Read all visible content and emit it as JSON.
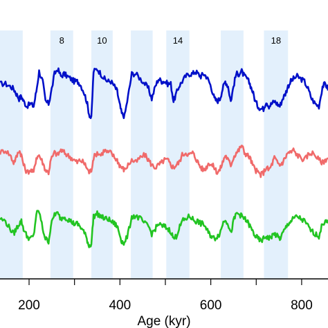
{
  "chart_data": {
    "type": "line",
    "xlabel": "Age (kyr)",
    "xlim": [
      136,
      858
    ],
    "x_ticks": [
      200,
      400,
      600,
      800
    ],
    "tick_labels": [
      "200",
      "400",
      "600",
      "800"
    ],
    "bands": [
      {
        "x0": 136,
        "x1": 186,
        "label": ""
      },
      {
        "x0": 247,
        "x1": 297,
        "label": "8"
      },
      {
        "x0": 337,
        "x1": 384,
        "label": "10"
      },
      {
        "x0": 424,
        "x1": 472,
        "label": ""
      },
      {
        "x0": 502,
        "x1": 553,
        "label": "14"
      },
      {
        "x0": 622,
        "x1": 672,
        "label": ""
      },
      {
        "x0": 717,
        "x1": 770,
        "label": "18"
      }
    ],
    "band_color": "#e3f0fc",
    "series": [
      {
        "color": "#0010c8",
        "x": [
          136,
          148,
          158,
          166,
          172,
          178,
          183,
          188,
          195,
          203,
          210,
          216,
          222,
          230,
          236,
          243,
          248,
          256,
          263,
          270,
          277,
          284,
          292,
          299,
          306,
          312,
          320,
          327,
          332,
          337,
          342,
          350,
          358,
          366,
          373,
          380,
          388,
          394,
          399,
          404,
          410,
          418,
          426,
          435,
          445,
          455,
          463,
          470,
          478,
          485,
          492,
          498,
          505,
          512,
          518,
          524,
          530,
          537,
          545,
          553,
          560,
          566,
          572,
          578,
          584,
          590,
          596,
          602,
          608,
          614,
          620,
          626,
          632,
          638,
          644,
          650,
          656,
          662,
          668,
          674,
          680,
          686,
          692,
          698,
          704,
          710,
          716,
          722,
          728,
          734,
          740,
          746,
          752,
          758,
          764,
          770,
          776,
          782,
          790,
          798,
          806,
          814,
          822,
          830,
          838,
          846,
          852,
          858
        ],
        "y": [
          -5.1,
          -5.1,
          -5.2,
          -5.3,
          -5.5,
          -5.7,
          -5.6,
          -5.8,
          -6.0,
          -5.9,
          -6.0,
          -5.4,
          -4.6,
          -5.0,
          -5.8,
          -5.9,
          -5.5,
          -4.7,
          -4.5,
          -4.8,
          -4.7,
          -4.8,
          -4.9,
          -5.0,
          -5.0,
          -5.1,
          -5.4,
          -5.8,
          -6.3,
          -6.5,
          -4.6,
          -4.5,
          -4.7,
          -4.9,
          -5.0,
          -5.0,
          -5.2,
          -5.4,
          -5.9,
          -6.3,
          -6.4,
          -5.6,
          -4.7,
          -4.7,
          -4.9,
          -5.1,
          -5.3,
          -5.7,
          -5.2,
          -4.9,
          -5.0,
          -5.0,
          -5.1,
          -5.1,
          -5.8,
          -5.5,
          -5.2,
          -5.0,
          -4.8,
          -4.7,
          -4.7,
          -4.6,
          -4.7,
          -4.8,
          -4.7,
          -4.8,
          -5.0,
          -5.3,
          -5.7,
          -5.8,
          -5.7,
          -5.3,
          -5.0,
          -5.2,
          -5.8,
          -5.2,
          -4.7,
          -4.7,
          -4.6,
          -4.8,
          -4.9,
          -5.1,
          -5.4,
          -5.8,
          -6.0,
          -6.1,
          -6.1,
          -5.8,
          -6.0,
          -5.9,
          -5.8,
          -5.9,
          -6.0,
          -5.7,
          -5.5,
          -5.2,
          -5.0,
          -4.9,
          -4.8,
          -4.9,
          -5.0,
          -5.3,
          -5.7,
          -5.9,
          -6.0,
          -5.2,
          -5.1,
          -5.3
        ],
        "y_offset_note": ""
      },
      {
        "color": "#f06a6a",
        "x": [
          136,
          148,
          158,
          166,
          172,
          178,
          183,
          188,
          195,
          203,
          210,
          216,
          222,
          230,
          236,
          243,
          248,
          256,
          263,
          270,
          277,
          284,
          292,
          299,
          306,
          312,
          320,
          327,
          332,
          337,
          342,
          350,
          358,
          366,
          373,
          380,
          388,
          394,
          399,
          404,
          410,
          418,
          426,
          435,
          445,
          455,
          463,
          470,
          478,
          485,
          492,
          498,
          505,
          512,
          518,
          524,
          530,
          537,
          545,
          553,
          560,
          566,
          572,
          578,
          584,
          590,
          596,
          602,
          608,
          614,
          620,
          626,
          632,
          638,
          644,
          650,
          656,
          662,
          668,
          674,
          680,
          686,
          692,
          698,
          704,
          710,
          716,
          722,
          728,
          734,
          740,
          746,
          752,
          758,
          764,
          770,
          776,
          782,
          790,
          798,
          806,
          814,
          822,
          830,
          838,
          846,
          852,
          858
        ],
        "y": [
          -5.1,
          -5.0,
          -5.2,
          -5.5,
          -5.3,
          -5.0,
          -5.2,
          -5.6,
          -5.9,
          -5.8,
          -5.9,
          -5.3,
          -5.2,
          -5.5,
          -5.8,
          -5.9,
          -5.4,
          -5.1,
          -5.2,
          -5.0,
          -5.1,
          -5.2,
          -5.3,
          -5.4,
          -5.5,
          -5.4,
          -5.5,
          -5.7,
          -5.9,
          -5.8,
          -5.3,
          -5.1,
          -5.2,
          -5.0,
          -5.1,
          -5.1,
          -5.3,
          -5.4,
          -5.6,
          -5.7,
          -5.8,
          -5.6,
          -5.4,
          -5.5,
          -5.3,
          -5.2,
          -5.4,
          -5.6,
          -5.7,
          -5.6,
          -5.5,
          -5.4,
          -5.4,
          -5.6,
          -5.7,
          -5.6,
          -5.5,
          -5.2,
          -5.1,
          -5.2,
          -5.1,
          -5.3,
          -5.5,
          -5.7,
          -5.8,
          -5.7,
          -5.5,
          -5.6,
          -5.7,
          -5.9,
          -5.8,
          -5.5,
          -5.2,
          -5.4,
          -5.6,
          -5.3,
          -5.1,
          -5.0,
          -4.8,
          -5.1,
          -5.2,
          -5.3,
          -5.6,
          -5.8,
          -5.9,
          -6.0,
          -5.9,
          -5.7,
          -5.8,
          -5.6,
          -5.3,
          -5.5,
          -5.6,
          -5.5,
          -5.3,
          -5.1,
          -5.1,
          -5.0,
          -5.2,
          -5.3,
          -5.4,
          -5.2,
          -5.1,
          -5.2,
          -5.4,
          -5.5,
          -5.4,
          -5.3
        ]
      },
      {
        "color": "#22c422",
        "x": [
          136,
          148,
          158,
          166,
          172,
          178,
          183,
          188,
          195,
          203,
          210,
          216,
          222,
          230,
          236,
          243,
          248,
          256,
          263,
          270,
          277,
          284,
          292,
          299,
          306,
          312,
          320,
          327,
          332,
          337,
          342,
          350,
          358,
          366,
          373,
          380,
          388,
          394,
          399,
          404,
          410,
          418,
          426,
          435,
          445,
          455,
          463,
          470,
          478,
          485,
          492,
          498,
          505,
          512,
          518,
          524,
          530,
          537,
          545,
          553,
          560,
          566,
          572,
          578,
          584,
          590,
          596,
          602,
          608,
          614,
          620,
          626,
          632,
          638,
          644,
          650,
          656,
          662,
          668,
          674,
          680,
          686,
          692,
          698,
          704,
          710,
          716,
          722,
          728,
          734,
          740,
          746,
          752,
          758,
          764,
          770,
          776,
          782,
          790,
          798,
          806,
          814,
          822,
          830,
          838,
          846,
          852,
          858
        ],
        "y": [
          -5.2,
          -5.3,
          -5.6,
          -5.8,
          -5.6,
          -5.4,
          -5.3,
          -5.6,
          -5.9,
          -6.0,
          -5.9,
          -5.0,
          -4.9,
          -5.6,
          -6.0,
          -6.1,
          -5.5,
          -5.0,
          -5.0,
          -5.2,
          -5.1,
          -5.2,
          -5.3,
          -5.4,
          -5.4,
          -5.5,
          -5.7,
          -6.0,
          -6.3,
          -6.2,
          -5.1,
          -5.0,
          -5.1,
          -5.2,
          -5.2,
          -5.3,
          -5.4,
          -5.5,
          -5.8,
          -6.1,
          -6.2,
          -5.8,
          -5.1,
          -5.1,
          -5.2,
          -5.4,
          -5.5,
          -5.8,
          -5.6,
          -5.4,
          -5.5,
          -5.5,
          -5.6,
          -5.7,
          -6.0,
          -5.9,
          -5.6,
          -5.3,
          -5.2,
          -5.1,
          -5.2,
          -5.3,
          -5.3,
          -5.4,
          -5.4,
          -5.6,
          -5.8,
          -5.9,
          -6.0,
          -5.9,
          -5.8,
          -5.4,
          -5.2,
          -5.4,
          -5.8,
          -5.3,
          -5.0,
          -5.0,
          -5.1,
          -5.2,
          -5.3,
          -5.5,
          -5.7,
          -5.9,
          -6.0,
          -6.1,
          -6.0,
          -5.9,
          -6.0,
          -5.9,
          -5.8,
          -5.9,
          -6.0,
          -5.8,
          -5.6,
          -5.4,
          -5.3,
          -5.2,
          -5.1,
          -5.2,
          -5.3,
          -5.5,
          -5.7,
          -5.8,
          -5.9,
          -5.4,
          -5.3,
          -5.4
        ]
      }
    ]
  }
}
